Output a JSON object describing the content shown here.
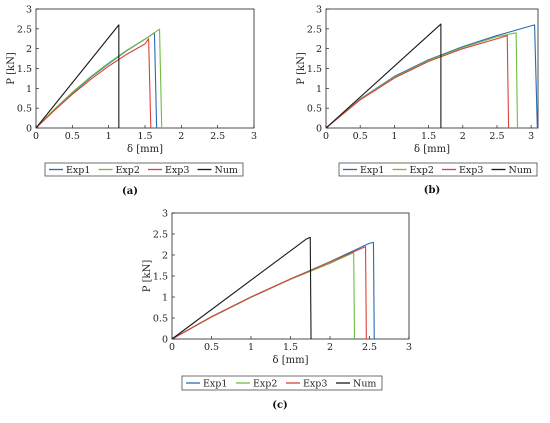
{
  "chart_data": [
    {
      "type": "line",
      "panel_label": "(a)",
      "xlabel": "δ [mm]",
      "ylabel": "P [kN]",
      "xlim": [
        0,
        3
      ],
      "ylim": [
        0,
        3
      ],
      "x_ticks": [
        0,
        0.5,
        1,
        1.5,
        2,
        2.5,
        3
      ],
      "y_ticks": [
        0,
        0.5,
        1,
        1.5,
        2,
        2.5,
        3
      ],
      "grid": false,
      "legend_position": "bottom",
      "series": [
        {
          "name": "Exp1",
          "color": "#2a6bb5",
          "points": [
            [
              0,
              0
            ],
            [
              0.25,
              0.46
            ],
            [
              0.5,
              0.88
            ],
            [
              0.75,
              1.27
            ],
            [
              1.0,
              1.62
            ],
            [
              1.25,
              1.95
            ],
            [
              1.5,
              2.24
            ],
            [
              1.63,
              2.4
            ],
            [
              1.66,
              0
            ]
          ]
        },
        {
          "name": "Exp2",
          "color": "#6cbd45",
          "points": [
            [
              0,
              0
            ],
            [
              0.25,
              0.47
            ],
            [
              0.5,
              0.9
            ],
            [
              0.75,
              1.29
            ],
            [
              1.0,
              1.64
            ],
            [
              1.25,
              1.96
            ],
            [
              1.5,
              2.24
            ],
            [
              1.7,
              2.49
            ],
            [
              1.73,
              0
            ]
          ]
        },
        {
          "name": "Exp3",
          "color": "#d9413a",
          "points": [
            [
              0,
              0
            ],
            [
              0.25,
              0.44
            ],
            [
              0.5,
              0.85
            ],
            [
              0.75,
              1.22
            ],
            [
              1.0,
              1.56
            ],
            [
              1.25,
              1.86
            ],
            [
              1.5,
              2.12
            ],
            [
              1.55,
              2.25
            ],
            [
              1.58,
              0
            ]
          ]
        },
        {
          "name": "Num",
          "color": "#1a1a1a",
          "points": [
            [
              0,
              0
            ],
            [
              1.14,
              2.6
            ],
            [
              1.14,
              0
            ]
          ]
        }
      ]
    },
    {
      "type": "line",
      "panel_label": "(b)",
      "xlabel": "δ [mm]",
      "ylabel": "P [kN]",
      "xlim": [
        0,
        3.1
      ],
      "ylim": [
        0,
        3
      ],
      "x_ticks": [
        0,
        0.5,
        1,
        1.5,
        2,
        2.5,
        3
      ],
      "y_ticks": [
        0,
        0.5,
        1,
        1.5,
        2,
        2.5,
        3
      ],
      "grid": false,
      "legend_position": "bottom",
      "series": [
        {
          "name": "Exp1",
          "color": "#2a6bb5",
          "points": [
            [
              0,
              0
            ],
            [
              0.5,
              0.73
            ],
            [
              1.0,
              1.3
            ],
            [
              1.5,
              1.72
            ],
            [
              2.0,
              2.05
            ],
            [
              2.5,
              2.33
            ],
            [
              3.05,
              2.6
            ],
            [
              3.09,
              0
            ]
          ]
        },
        {
          "name": "Exp2",
          "color": "#6cbd45",
          "points": [
            [
              0,
              0
            ],
            [
              0.5,
              0.72
            ],
            [
              1.0,
              1.28
            ],
            [
              1.5,
              1.7
            ],
            [
              2.0,
              2.03
            ],
            [
              2.5,
              2.3
            ],
            [
              2.78,
              2.4
            ],
            [
              2.8,
              0
            ]
          ]
        },
        {
          "name": "Exp3",
          "color": "#d9413a",
          "points": [
            [
              0,
              0
            ],
            [
              0.5,
              0.71
            ],
            [
              1.0,
              1.26
            ],
            [
              1.5,
              1.68
            ],
            [
              2.0,
              2.0
            ],
            [
              2.5,
              2.25
            ],
            [
              2.65,
              2.33
            ],
            [
              2.67,
              0
            ]
          ]
        },
        {
          "name": "Num",
          "color": "#1a1a1a",
          "points": [
            [
              0,
              0
            ],
            [
              1.68,
              2.62
            ],
            [
              1.68,
              0
            ]
          ]
        }
      ]
    },
    {
      "type": "line",
      "panel_label": "(c)",
      "xlabel": "δ [mm]",
      "ylabel": "P [kN]",
      "xlim": [
        0,
        3
      ],
      "ylim": [
        0,
        3
      ],
      "x_ticks": [
        0,
        0.5,
        1,
        1.5,
        2,
        2.5,
        3
      ],
      "y_ticks": [
        0,
        0.5,
        1,
        1.5,
        2,
        2.5,
        3
      ],
      "grid": false,
      "legend_position": "bottom",
      "series": [
        {
          "name": "Exp1",
          "color": "#2a6bb5",
          "points": [
            [
              0,
              0
            ],
            [
              0.5,
              0.53
            ],
            [
              1.0,
              1.0
            ],
            [
              1.5,
              1.43
            ],
            [
              2.0,
              1.84
            ],
            [
              2.5,
              2.28
            ],
            [
              2.55,
              2.3
            ],
            [
              2.56,
              0
            ]
          ]
        },
        {
          "name": "Exp2",
          "color": "#6cbd45",
          "points": [
            [
              0,
              0
            ],
            [
              0.5,
              0.52
            ],
            [
              1.0,
              0.99
            ],
            [
              1.5,
              1.42
            ],
            [
              2.0,
              1.8
            ],
            [
              2.3,
              2.06
            ],
            [
              2.31,
              0
            ]
          ]
        },
        {
          "name": "Exp3",
          "color": "#d9413a",
          "points": [
            [
              0,
              0
            ],
            [
              0.5,
              0.53
            ],
            [
              1.0,
              1.0
            ],
            [
              1.5,
              1.43
            ],
            [
              2.0,
              1.83
            ],
            [
              2.45,
              2.2
            ],
            [
              2.46,
              0
            ]
          ]
        },
        {
          "name": "Num",
          "color": "#1a1a1a",
          "points": [
            [
              0,
              0
            ],
            [
              1.7,
              2.38
            ],
            [
              1.75,
              2.42
            ],
            [
              1.76,
              0
            ]
          ]
        }
      ]
    }
  ]
}
